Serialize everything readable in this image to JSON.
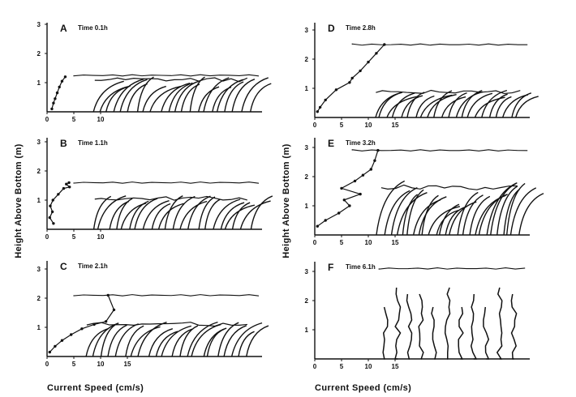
{
  "figure": {
    "ylabel": "Height Above Bottom (m)",
    "xlabel": "Current Speed (cm/s)"
  },
  "panels": [
    {
      "letter": "A",
      "time": "Time 0.1h",
      "x_ticks": [
        "0",
        "5",
        "10"
      ],
      "y_ticks": [
        "1",
        "2",
        "3"
      ]
    },
    {
      "letter": "B",
      "time": "Time 1.1h",
      "x_ticks": [
        "0",
        "5",
        "10"
      ],
      "y_ticks": [
        "1",
        "2",
        "3"
      ]
    },
    {
      "letter": "C",
      "time": "Time 2.1h",
      "x_ticks": [
        "0",
        "5",
        "10",
        "15"
      ],
      "y_ticks": [
        "1",
        "2",
        "3"
      ]
    },
    {
      "letter": "D",
      "time": "Time 2.8h",
      "x_ticks": [
        "0",
        "5",
        "10",
        "15"
      ],
      "y_ticks": [
        "1",
        "2",
        "3"
      ]
    },
    {
      "letter": "E",
      "time": "Time 3.2h",
      "x_ticks": [
        "0",
        "5",
        "10",
        "15"
      ],
      "y_ticks": [
        "1",
        "2",
        "3"
      ]
    },
    {
      "letter": "F",
      "time": "Time 6.1h",
      "x_ticks": [
        "0",
        "5",
        "10",
        "15"
      ],
      "y_ticks": [
        "1",
        "2",
        "3"
      ]
    }
  ],
  "chart_data": [
    {
      "type": "line",
      "panel": "A",
      "title": "Time 0.1h",
      "ylim": [
        0,
        3
      ],
      "xlim": [
        0,
        20
      ],
      "series": [
        {
          "x": [
            0.9,
            1.2,
            1.5,
            1.9,
            2.3,
            2.8,
            3.4
          ],
          "y": [
            0.1,
            0.3,
            0.45,
            0.65,
            0.85,
            1.05,
            1.2
          ]
        }
      ],
      "surface_height": 1.25,
      "canopy_height": 1.2,
      "canopy_x_start": 8.0,
      "canopy_shape": "bent"
    },
    {
      "type": "line",
      "panel": "B",
      "title": "Time 1.1h",
      "ylim": [
        0,
        3
      ],
      "xlim": [
        0,
        20
      ],
      "series": [
        {
          "x": [
            1.2,
            0.5,
            1.0,
            0.6,
            1.1,
            2.1,
            3.1,
            4.2,
            3.6,
            4.1
          ],
          "y": [
            0.2,
            0.4,
            0.6,
            0.8,
            1.0,
            1.2,
            1.4,
            1.45,
            1.55,
            1.6
          ]
        }
      ],
      "surface_height": 1.6,
      "canopy_height": 1.15,
      "canopy_x_start": 8.0,
      "canopy_shape": "bent"
    },
    {
      "type": "line",
      "panel": "C",
      "title": "Time 2.1h",
      "ylim": [
        0,
        3
      ],
      "xlim": [
        0,
        20
      ],
      "series": [
        {
          "x": [
            0.5,
            1.5,
            2.8,
            4.5,
            6.5,
            8.8,
            11.0,
            12.5,
            11.4
          ],
          "y": [
            0.15,
            0.35,
            0.55,
            0.75,
            0.95,
            1.1,
            1.2,
            1.6,
            2.1
          ]
        }
      ],
      "surface_height": 2.1,
      "canopy_height": 1.2,
      "canopy_x_start": 6.5,
      "canopy_shape": "bent"
    },
    {
      "type": "line",
      "panel": "D",
      "title": "Time 2.8h",
      "ylim": [
        0,
        3
      ],
      "xlim": [
        0,
        20
      ],
      "series": [
        {
          "x": [
            0.5,
            1.0,
            2.0,
            4.0,
            6.5,
            7.0,
            8.5,
            10.0,
            11.5,
            13.0
          ],
          "y": [
            0.2,
            0.35,
            0.6,
            0.95,
            1.2,
            1.35,
            1.6,
            1.9,
            2.2,
            2.5
          ]
        }
      ],
      "surface_height": 2.5,
      "canopy_height": 0.95,
      "canopy_x_start": 10.5,
      "canopy_shape": "bent"
    },
    {
      "type": "line",
      "panel": "E",
      "title": "Time 3.2h",
      "ylim": [
        0,
        3
      ],
      "xlim": [
        0,
        20
      ],
      "series": [
        {
          "x": [
            0.5,
            2.0,
            4.5,
            6.5,
            5.5,
            8.5,
            5.0,
            7.5,
            9.0,
            10.5,
            11.2,
            11.8
          ],
          "y": [
            0.3,
            0.5,
            0.75,
            1.0,
            1.2,
            1.4,
            1.6,
            1.85,
            2.05,
            2.25,
            2.55,
            2.9
          ]
        }
      ],
      "surface_height": 2.9,
      "canopy_height": 1.8,
      "canopy_x_start": 11.5,
      "canopy_shape": "wavy"
    },
    {
      "type": "line",
      "panel": "F",
      "title": "Time 6.1h",
      "ylim": [
        0,
        3
      ],
      "xlim": [
        0,
        20
      ],
      "series": [],
      "surface_height": 3.1,
      "canopy_height": 2.5,
      "canopy_x_start": 12.5,
      "canopy_shape": "upright"
    }
  ]
}
